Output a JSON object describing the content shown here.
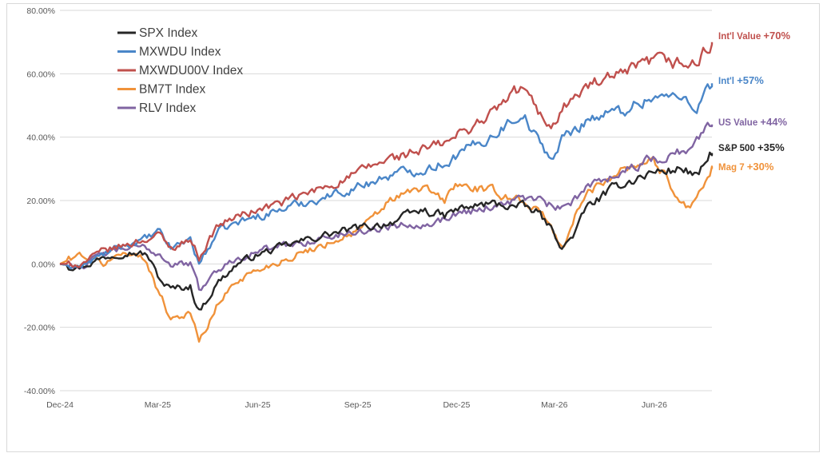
{
  "chart_data": {
    "type": "line",
    "title": "",
    "xlabel": "",
    "ylabel": "",
    "x_ticks": [
      "Dec-24",
      "Mar-25",
      "Jun-25",
      "Sep-25",
      "Dec-25",
      "Mar-26",
      "Jun-26"
    ],
    "x_tick_dates": [
      "2024-12-01",
      "2025-03-01",
      "2025-06-01",
      "2025-09-01",
      "2025-12-01",
      "2026-03-01",
      "2026-06-01"
    ],
    "xlim": [
      "2024-12-01",
      "2026-07-24"
    ],
    "y_ticks": [
      "-40.00%",
      "-20.00%",
      "0.00%",
      "20.00%",
      "40.00%",
      "60.00%",
      "80.00%"
    ],
    "ylim": [
      -40,
      80
    ],
    "grid": "horizontal",
    "legend_position": "top-left",
    "series": [
      {
        "name": "SPX Index",
        "color": "#262626",
        "end_label": "S&P 500",
        "end_pct": "+35%",
        "points": [
          [
            "2024-12-01",
            0
          ],
          [
            "2024-12-20",
            -1
          ],
          [
            "2025-01-10",
            2
          ],
          [
            "2025-01-31",
            4
          ],
          [
            "2025-02-19",
            3
          ],
          [
            "2025-03-03",
            -5
          ],
          [
            "2025-03-13",
            -8
          ],
          [
            "2025-03-31",
            -7
          ],
          [
            "2025-04-08",
            -15
          ],
          [
            "2025-04-25",
            -6
          ],
          [
            "2025-05-13",
            0
          ],
          [
            "2025-06-01",
            3
          ],
          [
            "2025-06-30",
            6
          ],
          [
            "2025-07-31",
            9
          ],
          [
            "2025-08-29",
            11
          ],
          [
            "2025-09-15",
            12
          ],
          [
            "2025-09-30",
            13
          ],
          [
            "2025-10-31",
            17
          ],
          [
            "2025-11-20",
            15
          ],
          [
            "2025-11-30",
            17
          ],
          [
            "2025-12-31",
            19
          ],
          [
            "2026-01-31",
            18
          ],
          [
            "2026-02-15",
            16
          ],
          [
            "2026-02-28",
            10
          ],
          [
            "2026-03-09",
            5
          ],
          [
            "2026-03-20",
            10
          ],
          [
            "2026-03-31",
            18
          ],
          [
            "2026-04-30",
            25
          ],
          [
            "2026-05-31",
            29
          ],
          [
            "2026-06-30",
            30
          ],
          [
            "2026-07-10",
            27
          ],
          [
            "2026-07-24",
            35
          ]
        ]
      },
      {
        "name": "MXWDU Index",
        "color": "#4a86c8",
        "end_label": "Int'l",
        "end_pct": "+57%",
        "points": [
          [
            "2024-12-01",
            0
          ],
          [
            "2024-12-20",
            -1
          ],
          [
            "2025-01-10",
            3
          ],
          [
            "2025-01-31",
            6
          ],
          [
            "2025-02-19",
            8
          ],
          [
            "2025-03-03",
            10
          ],
          [
            "2025-03-13",
            5
          ],
          [
            "2025-03-31",
            8
          ],
          [
            "2025-04-08",
            0
          ],
          [
            "2025-04-25",
            10
          ],
          [
            "2025-05-13",
            13
          ],
          [
            "2025-06-01",
            15
          ],
          [
            "2025-06-30",
            18
          ],
          [
            "2025-07-31",
            21
          ],
          [
            "2025-08-29",
            24
          ],
          [
            "2025-09-15",
            26
          ],
          [
            "2025-09-30",
            28
          ],
          [
            "2025-10-31",
            30
          ],
          [
            "2025-11-20",
            32
          ],
          [
            "2025-11-30",
            34
          ],
          [
            "2025-12-31",
            40
          ],
          [
            "2026-01-31",
            48
          ],
          [
            "2026-02-15",
            38
          ],
          [
            "2026-02-28",
            33
          ],
          [
            "2026-03-09",
            40
          ],
          [
            "2026-03-20",
            42
          ],
          [
            "2026-03-31",
            46
          ],
          [
            "2026-04-30",
            48
          ],
          [
            "2026-05-31",
            53
          ],
          [
            "2026-06-30",
            52
          ],
          [
            "2026-07-10",
            50
          ],
          [
            "2026-07-24",
            57
          ]
        ]
      },
      {
        "name": "MXWDU00V Index",
        "color": "#c0504d",
        "end_label": "Int'l Value",
        "end_pct": "+70%",
        "points": [
          [
            "2024-12-01",
            0
          ],
          [
            "2024-12-20",
            0
          ],
          [
            "2025-01-10",
            4
          ],
          [
            "2025-01-31",
            6
          ],
          [
            "2025-02-19",
            8
          ],
          [
            "2025-03-03",
            9
          ],
          [
            "2025-03-13",
            5
          ],
          [
            "2025-03-31",
            8
          ],
          [
            "2025-04-08",
            2
          ],
          [
            "2025-04-25",
            12
          ],
          [
            "2025-05-13",
            15
          ],
          [
            "2025-06-01",
            17
          ],
          [
            "2025-06-30",
            20
          ],
          [
            "2025-07-31",
            24
          ],
          [
            "2025-08-29",
            28
          ],
          [
            "2025-09-15",
            31
          ],
          [
            "2025-09-30",
            33
          ],
          [
            "2025-10-31",
            36
          ],
          [
            "2025-11-20",
            38
          ],
          [
            "2025-11-30",
            40
          ],
          [
            "2025-12-31",
            47
          ],
          [
            "2026-01-31",
            56
          ],
          [
            "2026-02-15",
            47
          ],
          [
            "2026-02-28",
            44
          ],
          [
            "2026-03-09",
            50
          ],
          [
            "2026-03-20",
            52
          ],
          [
            "2026-03-31",
            56
          ],
          [
            "2026-04-30",
            59
          ],
          [
            "2026-05-31",
            64
          ],
          [
            "2026-06-30",
            63
          ],
          [
            "2026-07-10",
            63
          ],
          [
            "2026-07-24",
            70
          ]
        ]
      },
      {
        "name": "BM7T Index",
        "color": "#f0923a",
        "end_label": "Mag 7",
        "end_pct": "+30%",
        "points": [
          [
            "2024-12-01",
            0
          ],
          [
            "2024-12-20",
            3
          ],
          [
            "2025-01-10",
            0
          ],
          [
            "2025-01-31",
            4
          ],
          [
            "2025-02-19",
            1
          ],
          [
            "2025-03-03",
            -10
          ],
          [
            "2025-03-13",
            -17
          ],
          [
            "2025-03-31",
            -15
          ],
          [
            "2025-04-08",
            -25
          ],
          [
            "2025-04-25",
            -13
          ],
          [
            "2025-05-13",
            -5
          ],
          [
            "2025-06-01",
            -2
          ],
          [
            "2025-06-30",
            2
          ],
          [
            "2025-07-31",
            6
          ],
          [
            "2025-08-29",
            10
          ],
          [
            "2025-09-15",
            14
          ],
          [
            "2025-09-30",
            20
          ],
          [
            "2025-10-31",
            24
          ],
          [
            "2025-11-20",
            20
          ],
          [
            "2025-11-30",
            25
          ],
          [
            "2025-12-31",
            23
          ],
          [
            "2026-01-31",
            20
          ],
          [
            "2026-02-15",
            17
          ],
          [
            "2026-02-28",
            10
          ],
          [
            "2026-03-09",
            5
          ],
          [
            "2026-03-20",
            15
          ],
          [
            "2026-03-31",
            22
          ],
          [
            "2026-04-30",
            30
          ],
          [
            "2026-05-31",
            33
          ],
          [
            "2026-06-30",
            18
          ],
          [
            "2026-07-10",
            21
          ],
          [
            "2026-07-24",
            30
          ]
        ]
      },
      {
        "name": "RLV Index",
        "color": "#8064a2",
        "end_label": "US Value",
        "end_pct": "+44%",
        "points": [
          [
            "2024-12-01",
            0
          ],
          [
            "2024-12-20",
            -1
          ],
          [
            "2025-01-10",
            3
          ],
          [
            "2025-01-31",
            5
          ],
          [
            "2025-02-19",
            5
          ],
          [
            "2025-03-03",
            3
          ],
          [
            "2025-03-13",
            0
          ],
          [
            "2025-03-31",
            0
          ],
          [
            "2025-04-08",
            -8
          ],
          [
            "2025-04-25",
            -2
          ],
          [
            "2025-05-13",
            2
          ],
          [
            "2025-06-01",
            4
          ],
          [
            "2025-06-30",
            6
          ],
          [
            "2025-07-31",
            8
          ],
          [
            "2025-08-29",
            10
          ],
          [
            "2025-09-15",
            11
          ],
          [
            "2025-09-30",
            12
          ],
          [
            "2025-10-31",
            13
          ],
          [
            "2025-11-20",
            14
          ],
          [
            "2025-11-30",
            16
          ],
          [
            "2025-12-31",
            18
          ],
          [
            "2026-01-31",
            21
          ],
          [
            "2026-02-15",
            20
          ],
          [
            "2026-02-28",
            18
          ],
          [
            "2026-03-09",
            17
          ],
          [
            "2026-03-20",
            20
          ],
          [
            "2026-03-31",
            25
          ],
          [
            "2026-04-30",
            29
          ],
          [
            "2026-05-31",
            33
          ],
          [
            "2026-06-30",
            36
          ],
          [
            "2026-07-10",
            39
          ],
          [
            "2026-07-24",
            44
          ]
        ]
      }
    ]
  }
}
